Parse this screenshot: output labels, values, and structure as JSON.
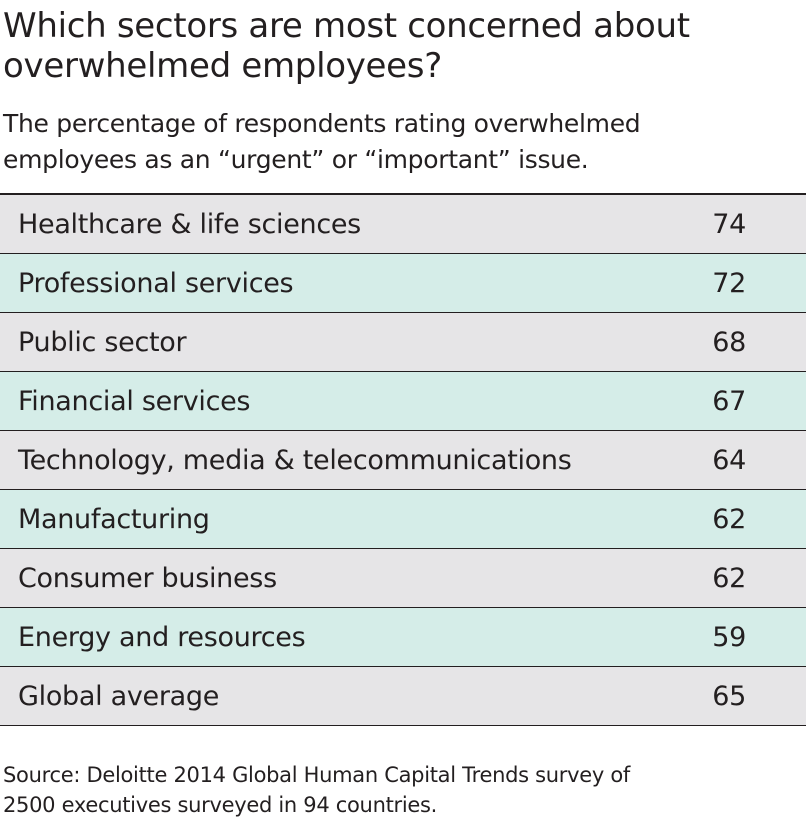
{
  "header": {
    "title": [
      "Which sectors are most concerned about",
      "overwhelmed employees?"
    ],
    "subtitle": [
      "The percentage of respondents rating overwhelmed",
      "employees as an “urgent” or “important” issue."
    ]
  },
  "table": {
    "rows": [
      [
        "Healthcare & life sciences",
        74
      ],
      [
        "Professional services",
        72
      ],
      [
        "Public sector",
        68
      ],
      [
        "Financial services",
        67
      ],
      [
        "Technology, media & telecommunications",
        64
      ],
      [
        "Manufacturing",
        62
      ],
      [
        "Consumer business",
        62
      ],
      [
        "Energy and resources",
        59
      ],
      [
        "Global average",
        65
      ]
    ]
  },
  "footer": {
    "source": [
      "Source: Deloitte 2014 Global Human Capital Trends survey of",
      "2500 executives surveyed in 94 countries."
    ]
  }
}
